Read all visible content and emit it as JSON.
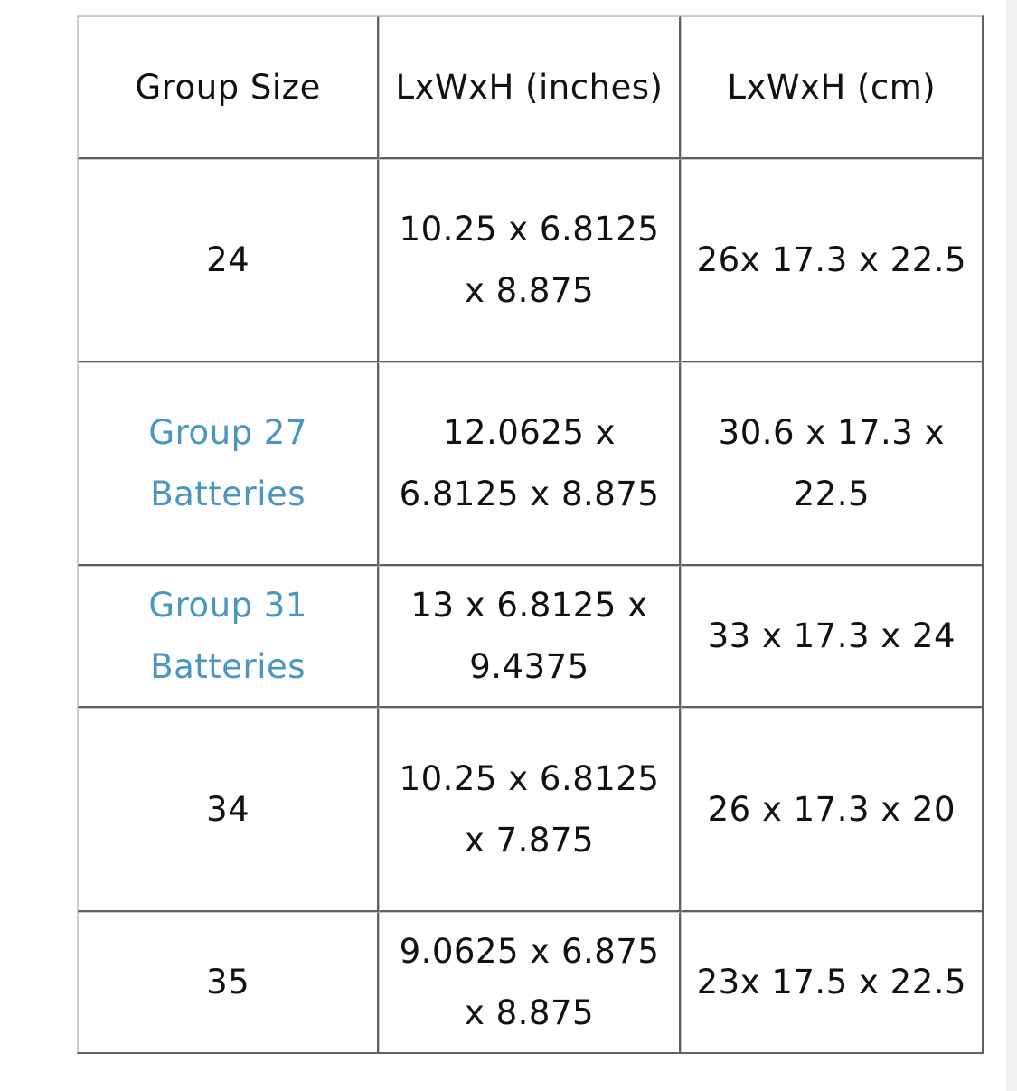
{
  "table": {
    "headers": {
      "group": "Group Size",
      "inches": "LxWxH (inches)",
      "cm": "LxWxH (cm)"
    },
    "rows": [
      {
        "group": "24",
        "inches": "10.25 x 6.8125 x 8.875",
        "cm": "26x 17.3 x 22.5"
      },
      {
        "group": "Group 27 Batteries",
        "inches": "12.0625 x 6.8125 x 8.875",
        "cm": "30.6 x 17.3 x 22.5"
      },
      {
        "group": "Group 31 Batteries",
        "inches": "13 x 6.8125 x 9.4375",
        "cm": "33 x 17.3 x 24"
      },
      {
        "group": "34",
        "inches": "10.25 x 6.8125 x 7.875",
        "cm": "26 x 17.3 x 20"
      },
      {
        "group": "35",
        "inches": "9.0625 x 6.875 x 8.875",
        "cm": "23x 17.5 x 22.5"
      }
    ]
  },
  "colors": {
    "link": "#4a96c3",
    "text": "#111111",
    "border": "#606060"
  }
}
